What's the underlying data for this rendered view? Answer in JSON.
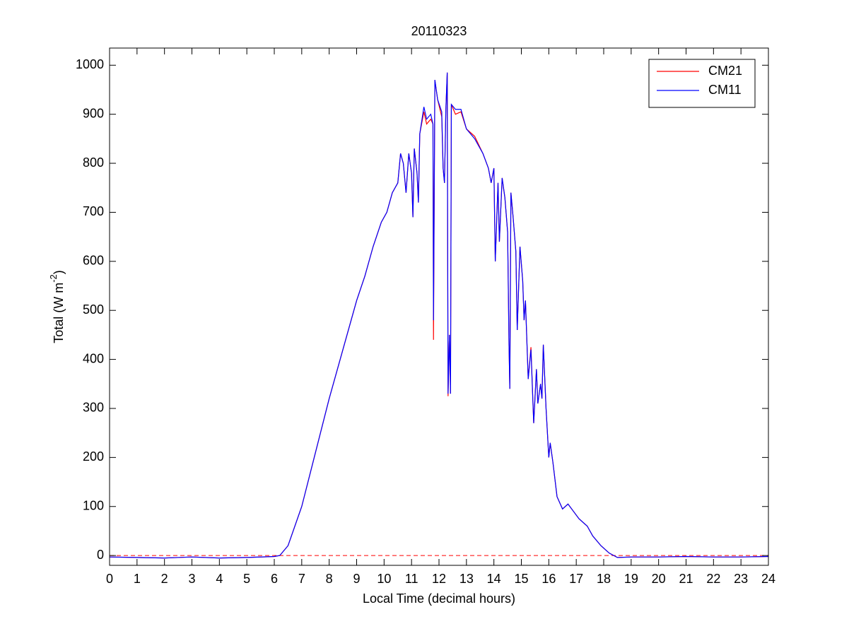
{
  "chart_data": {
    "type": "line",
    "title": "20110323",
    "x_label": "Local Time (decimal hours)",
    "y_label": {
      "text": "Total (W m",
      "superscript": "-2",
      "suffix": ")"
    },
    "x": [
      0,
      1,
      2,
      3,
      4,
      5,
      6,
      6.2,
      6.5,
      7,
      7.5,
      8,
      8.5,
      9,
      9.3,
      9.6,
      9.9,
      10.1,
      10.3,
      10.5,
      10.6,
      10.7,
      10.8,
      10.9,
      11,
      11.05,
      11.1,
      11.2,
      11.25,
      11.3,
      11.45,
      11.55,
      11.7,
      11.78,
      11.8,
      11.85,
      11.95,
      12.1,
      12.15,
      12.2,
      12.25,
      12.3,
      12.33,
      12.38,
      12.42,
      12.45,
      12.6,
      12.8,
      13,
      13.3,
      13.6,
      13.8,
      13.9,
      14,
      14.05,
      14.15,
      14.2,
      14.3,
      14.4,
      14.5,
      14.55,
      14.58,
      14.62,
      14.7,
      14.8,
      14.85,
      14.95,
      15.05,
      15.1,
      15.15,
      15.25,
      15.35,
      15.45,
      15.55,
      15.6,
      15.7,
      15.75,
      15.8,
      15.9,
      16,
      16.05,
      16.15,
      16.3,
      16.5,
      16.7,
      16.9,
      17.1,
      17.4,
      17.6,
      17.9,
      18.2,
      18.5,
      19,
      20,
      21,
      22,
      23,
      24
    ],
    "series": [
      {
        "name": "CM21",
        "color": "#ff0000",
        "values": [
          -3,
          -4,
          -5,
          -3,
          -5,
          -4,
          -2,
          0,
          20,
          100,
          210,
          320,
          420,
          520,
          570,
          630,
          680,
          700,
          740,
          760,
          820,
          800,
          740,
          820,
          780,
          690,
          830,
          780,
          720,
          860,
          905,
          880,
          890,
          880,
          440,
          970,
          930,
          895,
          790,
          760,
          910,
          985,
          325,
          450,
          330,
          920,
          900,
          905,
          870,
          855,
          820,
          790,
          760,
          790,
          600,
          760,
          640,
          770,
          730,
          660,
          430,
          340,
          740,
          690,
          620,
          460,
          630,
          560,
          480,
          520,
          360,
          425,
          270,
          380,
          310,
          350,
          320,
          430,
          300,
          200,
          230,
          190,
          120,
          95,
          105,
          90,
          75,
          60,
          40,
          20,
          5,
          -4,
          -3,
          -3,
          -2,
          -3,
          -3,
          -2
        ]
      },
      {
        "name": "CM11",
        "color": "#0000ff",
        "values": [
          -3,
          -4,
          -5,
          -3,
          -5,
          -4,
          -2,
          0,
          20,
          100,
          210,
          320,
          420,
          520,
          570,
          630,
          680,
          700,
          740,
          760,
          820,
          800,
          740,
          820,
          780,
          690,
          830,
          780,
          720,
          860,
          915,
          890,
          900,
          880,
          480,
          970,
          930,
          905,
          790,
          760,
          910,
          985,
          330,
          450,
          330,
          920,
          910,
          910,
          870,
          850,
          820,
          790,
          760,
          790,
          600,
          760,
          640,
          770,
          730,
          660,
          430,
          340,
          740,
          690,
          620,
          460,
          630,
          560,
          480,
          520,
          360,
          420,
          270,
          380,
          310,
          350,
          320,
          430,
          300,
          200,
          230,
          190,
          120,
          95,
          105,
          90,
          75,
          60,
          40,
          20,
          5,
          -4,
          -3,
          -3,
          -2,
          -3,
          -3,
          -2
        ]
      }
    ],
    "xlim": [
      0,
      24
    ],
    "xticks": [
      0,
      1,
      2,
      3,
      4,
      5,
      6,
      7,
      8,
      9,
      10,
      11,
      12,
      13,
      14,
      15,
      16,
      17,
      18,
      19,
      20,
      21,
      22,
      23,
      24
    ],
    "ylim": [
      -20,
      1035
    ],
    "yticks": [
      0,
      100,
      200,
      300,
      400,
      500,
      600,
      700,
      800,
      900,
      1000
    ],
    "grid": false,
    "legend": "top-right"
  }
}
